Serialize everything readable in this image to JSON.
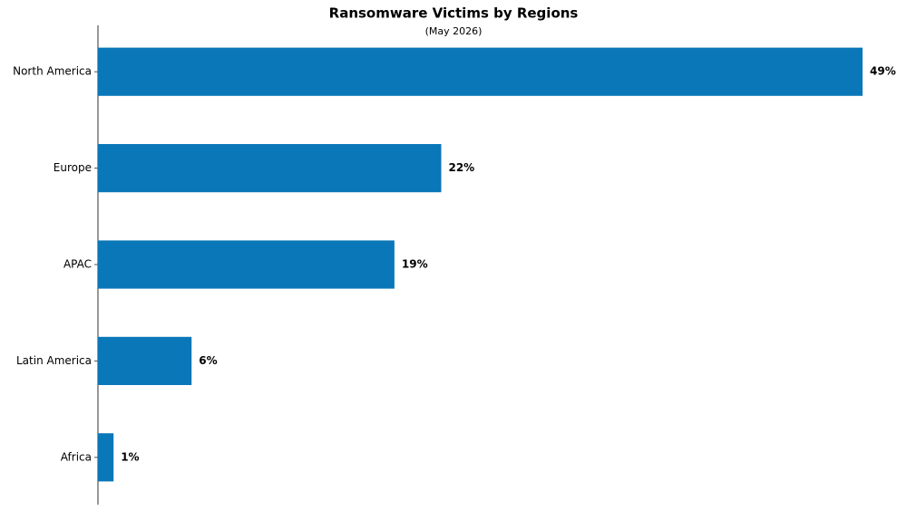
{
  "chart_data": {
    "type": "barh",
    "title": "Ransomware Victims by Regions",
    "subtitle": "(May 2026)",
    "categories": [
      "North America",
      "Europe",
      "APAC",
      "Latin America",
      "Africa"
    ],
    "values": [
      49,
      22,
      19,
      6,
      1
    ],
    "value_labels": [
      "49%",
      "22%",
      "19%",
      "6%",
      "1%"
    ],
    "color": "#0a77b8",
    "xlim": [
      0,
      49
    ]
  }
}
